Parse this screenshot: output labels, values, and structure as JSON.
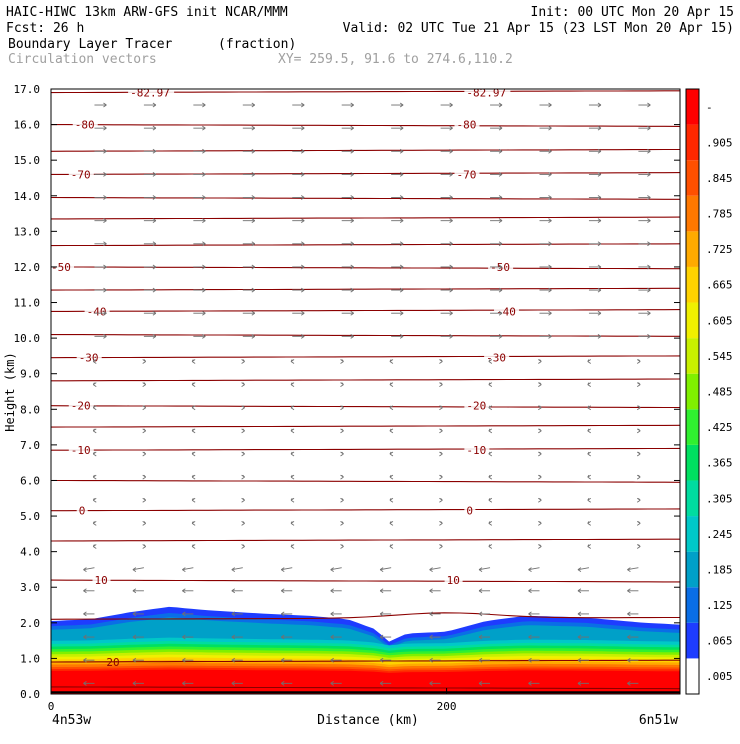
{
  "header": {
    "line1_left": "HAIC-HIWC 13km ARW-GFS init   NCAR/MMM",
    "line1_right": "Init: 00 UTC Mon 20 Apr 15",
    "line2_left": "Fcst:   26 h",
    "line2_right": "Valid: 02 UTC Tue 21 Apr 15 (23 LST Mon 20 Apr 15)",
    "field_name": "Boundary Layer Tracer",
    "field_units": "(fraction)",
    "vector_label": "Circulation vectors",
    "xy_label": "XY= 259.5, 91.6 to 274.6,110.2"
  },
  "chart_data": {
    "type": "heatmap",
    "title": "Boundary Layer Tracer",
    "xlabel": "Distance (km)",
    "ylabel": "Height (km)",
    "xlim": [
      0,
      318
    ],
    "ylim": [
      0,
      17
    ],
    "x_ticks": [
      {
        "value": 0,
        "label": "0"
      },
      {
        "value": 200,
        "label": "200"
      }
    ],
    "x_end_labels": {
      "left": "4n53w",
      "right": "6n51w"
    },
    "y_ticks": [
      0,
      1,
      2,
      3,
      4,
      5,
      6,
      7,
      8,
      9,
      10,
      11,
      12,
      13,
      14,
      15,
      16,
      17
    ],
    "y_tick_labels": [
      "0.0",
      "1.0",
      "2.0",
      "3.0",
      "4.0",
      "5.0",
      "6.0",
      "7.0",
      "8.0",
      "9.0",
      "10.0",
      "11.0",
      "12.0",
      "13.0",
      "14.0",
      "15.0",
      "16.0",
      "17.0"
    ],
    "colorbar": {
      "labels": [
        ".005",
        ".065",
        ".125",
        ".185",
        ".245",
        ".305",
        ".365",
        ".425",
        ".485",
        ".545",
        ".605",
        ".665",
        ".725",
        ".785",
        ".845",
        ".905",
        "-"
      ],
      "colors": [
        "#ffffff",
        "#1e3cff",
        "#0a6ee6",
        "#00a0c8",
        "#00c8c8",
        "#00dca0",
        "#00e060",
        "#30f030",
        "#80f000",
        "#c8f000",
        "#f0f000",
        "#ffd200",
        "#ffaa00",
        "#ff7800",
        "#ff5000",
        "#ff2800",
        "#ff0000"
      ]
    },
    "temperature_contours": {
      "color": "#8b0000",
      "levels": [
        {
          "height": 0.2,
          "label": ""
        },
        {
          "height": 0.9,
          "label": "20",
          "label_x": 28
        },
        {
          "height": 2.1,
          "label": ""
        },
        {
          "height": 3.2,
          "label": "10",
          "label_x": 22,
          "label2": "10",
          "label2_x": 200
        },
        {
          "height": 4.3,
          "label": ""
        },
        {
          "height": 5.15,
          "label": "0",
          "label_x": 14,
          "label2": "0",
          "label2_x": 210
        },
        {
          "height": 6.0,
          "label": ""
        },
        {
          "height": 6.85,
          "label": "-10",
          "label_x": 10,
          "label2": "-10",
          "label2_x": 210
        },
        {
          "height": 7.5,
          "label": ""
        },
        {
          "height": 8.1,
          "label": "-20",
          "label_x": 10,
          "label2": "-20",
          "label2_x": 210
        },
        {
          "height": 8.8,
          "label": ""
        },
        {
          "height": 9.45,
          "label": "-30",
          "label_x": 14,
          "label2": "-30",
          "label2_x": 220
        },
        {
          "height": 10.1,
          "label": ""
        },
        {
          "height": 10.75,
          "label": "-40",
          "label_x": 18,
          "label2": "-40",
          "label2_x": 225
        },
        {
          "height": 11.35,
          "label": ""
        },
        {
          "height": 12.0,
          "label": "-50",
          "label_x": 0,
          "label2": "-50",
          "label2_x": 222
        },
        {
          "height": 12.6,
          "label": ""
        },
        {
          "height": 13.35,
          "label": ""
        },
        {
          "height": 13.95,
          "label": ""
        },
        {
          "height": 14.6,
          "label": "-70",
          "label_x": 10,
          "label2": "-70",
          "label2_x": 205
        },
        {
          "height": 15.25,
          "label": ""
        },
        {
          "height": 16.0,
          "label": "-80",
          "label_x": 12,
          "label2": "-80",
          "label2_x": 205
        },
        {
          "height": 16.9,
          "label": "-82.97",
          "label_x": 210,
          "label2": "-82.97",
          "label2_x": 40
        }
      ]
    },
    "tracer_top_km": [
      {
        "x": 0,
        "h": 2.05
      },
      {
        "x": 20,
        "h": 2.1
      },
      {
        "x": 40,
        "h": 2.3
      },
      {
        "x": 60,
        "h": 2.45
      },
      {
        "x": 80,
        "h": 2.35
      },
      {
        "x": 110,
        "h": 2.25
      },
      {
        "x": 130,
        "h": 2.2
      },
      {
        "x": 150,
        "h": 2.1
      },
      {
        "x": 165,
        "h": 1.8
      },
      {
        "x": 170,
        "h": 1.45
      },
      {
        "x": 180,
        "h": 1.7
      },
      {
        "x": 200,
        "h": 1.75
      },
      {
        "x": 220,
        "h": 2.05
      },
      {
        "x": 240,
        "h": 2.2
      },
      {
        "x": 270,
        "h": 2.15
      },
      {
        "x": 300,
        "h": 2.0
      },
      {
        "x": 318,
        "h": 1.95
      }
    ]
  }
}
